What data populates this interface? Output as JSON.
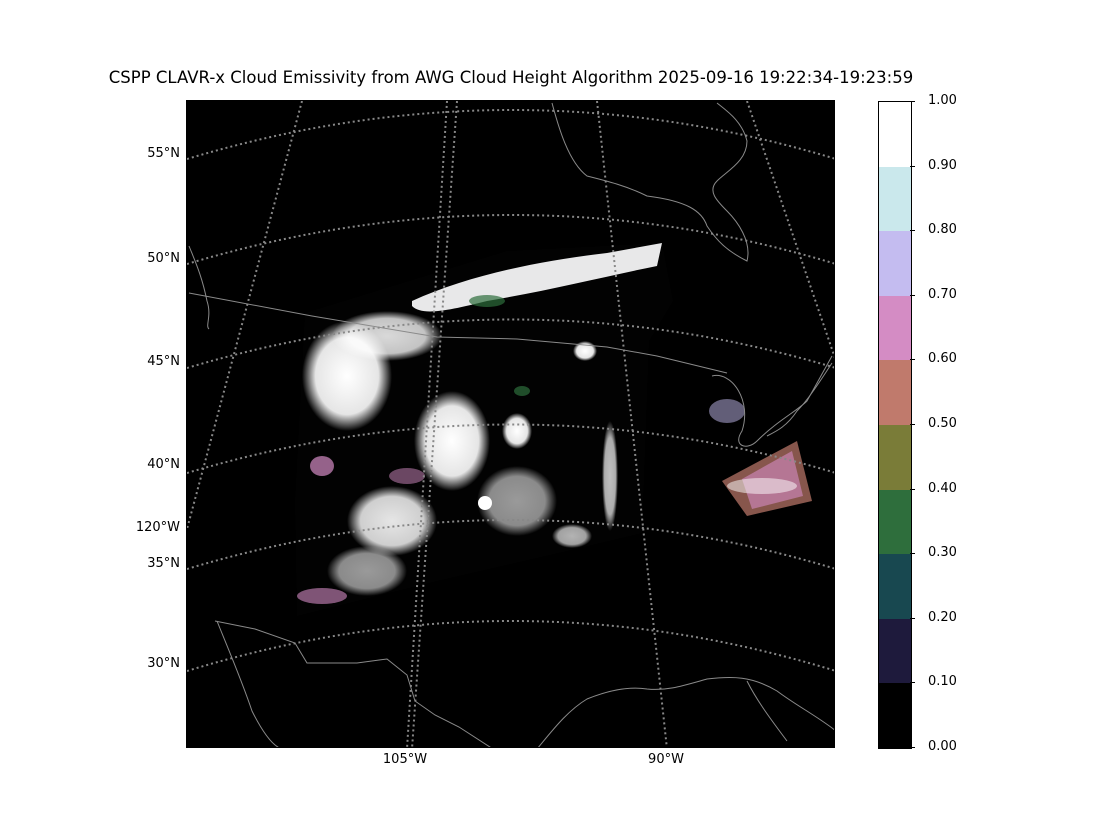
{
  "title": "CSPP CLAVR-x Cloud Emissivity from AWG Cloud Height Algorithm 2025-09-16 19:22:34-19:23:59",
  "map": {
    "background_color": "#000000",
    "gridline_color": "#888888",
    "coastline_color": "#8a8a8a",
    "lat_labels": [
      "55°N",
      "50°N",
      "45°N",
      "40°N",
      "35°N",
      "30°N"
    ],
    "lon_labels_left": [
      "120°W"
    ],
    "lon_labels_bottom": [
      "105°W",
      "90°W"
    ]
  },
  "colorbar": {
    "ticks": [
      "1.00",
      "0.90",
      "0.80",
      "0.70",
      "0.60",
      "0.50",
      "0.40",
      "0.30",
      "0.20",
      "0.10",
      "0.00"
    ],
    "colors": [
      "#000000",
      "#1e1a3c",
      "#184850",
      "#2e6e3c",
      "#7a7c38",
      "#c07a6c",
      "#d48cc4",
      "#c4bcf0",
      "#cae8ec",
      "#ffffff"
    ]
  }
}
